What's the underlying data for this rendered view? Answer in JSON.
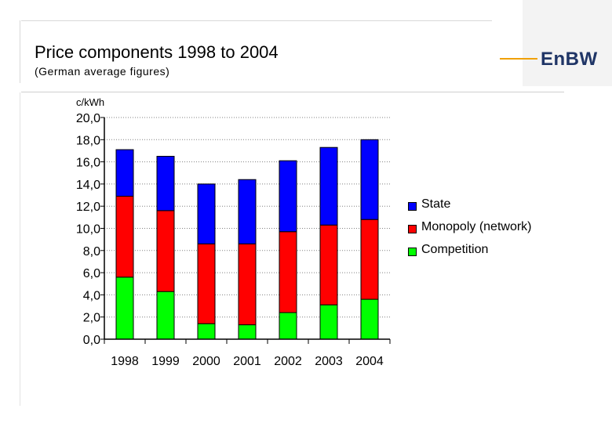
{
  "header": {
    "title": "Price components 1998 to 2004",
    "subtitle": "(German average figures)",
    "logo_text": "EnBW"
  },
  "colors": {
    "state": "#0000ff",
    "monopoly": "#ff0000",
    "competition": "#00ff00",
    "logo_accent": "#f0a000",
    "logo_text": "#1f3566"
  },
  "chart_data": {
    "type": "bar",
    "stacked": true,
    "unit_label": "c/kWh",
    "categories": [
      "1998",
      "1999",
      "2000",
      "2001",
      "2002",
      "2003",
      "2004"
    ],
    "series": [
      {
        "name": "Competition",
        "color": "#00ff00",
        "values": [
          5.6,
          4.3,
          1.4,
          1.3,
          2.4,
          3.1,
          3.6
        ]
      },
      {
        "name": "Monopoly (network)",
        "color": "#ff0000",
        "values": [
          7.3,
          7.3,
          7.2,
          7.3,
          7.3,
          7.2,
          7.2
        ]
      },
      {
        "name": "State",
        "color": "#0000ff",
        "values": [
          4.2,
          4.9,
          5.4,
          5.8,
          6.4,
          7.0,
          7.2
        ]
      }
    ],
    "legend_order": [
      "State",
      "Monopoly (network)",
      "Competition"
    ],
    "y_ticks": [
      "0,0",
      "2,0",
      "4,0",
      "6,0",
      "8,0",
      "10,0",
      "12,0",
      "14,0",
      "16,0",
      "18,0",
      "20,0"
    ],
    "ylim": [
      0,
      20
    ],
    "grid": true,
    "legend_position": "right"
  }
}
